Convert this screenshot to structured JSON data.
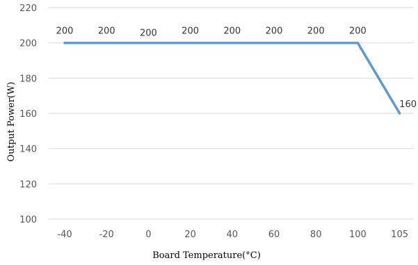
{
  "chart_data": {
    "type": "line",
    "title": "",
    "xlabel": "Board Temperature(°C)",
    "ylabel": "Output Power(W)",
    "categories": [
      "-40",
      "-20",
      "0",
      "20",
      "40",
      "60",
      "80",
      "100",
      "105"
    ],
    "series": [
      {
        "values": [
          200,
          200,
          200,
          200,
          200,
          200,
          200,
          200,
          160
        ],
        "color": "#5b9bd5"
      }
    ],
    "data_labels": [
      "200",
      "200",
      "200",
      "200",
      "200",
      "200",
      "200",
      "200",
      "160"
    ],
    "ylim": [
      100,
      220
    ],
    "yticks": [
      "220",
      "200",
      "180",
      "160",
      "140",
      "120",
      "100"
    ],
    "grid": true,
    "legend": "none",
    "colors": {
      "grid": "#d9d9d9",
      "tick_text": "#555555",
      "label_text": "#333333"
    }
  }
}
